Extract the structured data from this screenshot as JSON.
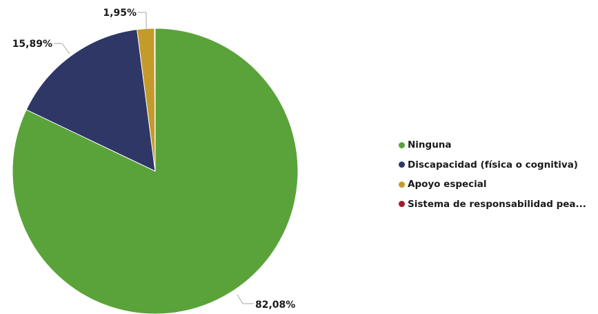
{
  "chart_data": {
    "type": "pie",
    "categories": [
      "Ninguna",
      "Discapacidad (física o cognitiva)",
      "Apoyo especial",
      "Sistema de responsabilidad pea..."
    ],
    "values": [
      82.08,
      15.89,
      1.95,
      0.08
    ],
    "data_labels": [
      "82,08%",
      "15,89%",
      "1,95%",
      ""
    ],
    "colors": [
      "#5aa33a",
      "#2e3766",
      "#c49a2a",
      "#a21c28"
    ],
    "legend_position": "right"
  }
}
